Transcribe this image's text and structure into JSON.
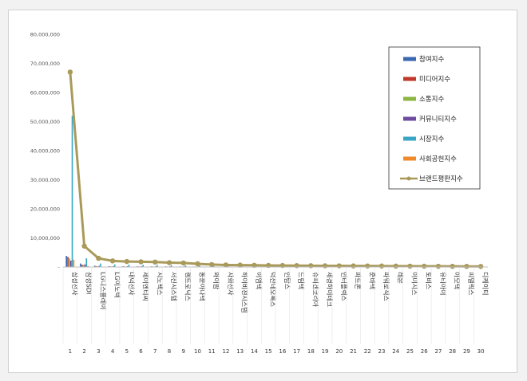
{
  "chart_data": {
    "type": "bar",
    "categories": [
      "삼성전자",
      "삼성SDI",
      "LG디스플레이",
      "LG이노텍",
      "대덕전자",
      "제이엔티씨",
      "시노펙스",
      "서진시스템",
      "켐트로닉스",
      "동운아나텍",
      "와이팜",
      "자화전자",
      "하이비젼시스템",
      "이엠텍",
      "덕산네오룩스",
      "인탑스",
      "드림텍",
      "슈피겐코리아",
      "세경하이테크",
      "인터플렉스",
      "파트론",
      "준바텍",
      "파워로직스",
      "레몬",
      "이미지스",
      "토비스",
      "유티아이",
      "아모텍",
      "피델릭스",
      "디케이티"
    ],
    "numbers": [
      "1",
      "2",
      "3",
      "4",
      "5",
      "6",
      "7",
      "8",
      "9",
      "10",
      "11",
      "12",
      "13",
      "14",
      "15",
      "16",
      "17",
      "18",
      "19",
      "20",
      "21",
      "22",
      "23",
      "24",
      "25",
      "26",
      "27",
      "28",
      "29",
      "30"
    ],
    "series": [
      {
        "name": "참여지수",
        "color": "#3a67b0",
        "values": [
          3800000,
          1200000,
          450000,
          280000,
          260000,
          240000,
          230000,
          210000,
          200000,
          160000,
          120000,
          100000,
          90000,
          85000,
          80000,
          75000,
          70000,
          65000,
          60000,
          55000,
          50000,
          45000,
          40000,
          35000,
          30000,
          28000,
          26000,
          24000,
          22000,
          20000
        ]
      },
      {
        "name": "미디어지수",
        "color": "#c0392b",
        "values": [
          3500000,
          800000,
          300000,
          220000,
          200000,
          190000,
          180000,
          170000,
          160000,
          140000,
          100000,
          80000,
          75000,
          70000,
          65000,
          60000,
          55000,
          50000,
          45000,
          40000,
          35000,
          30000,
          28000,
          26000,
          24000,
          22000,
          20000,
          18000,
          16000,
          15000
        ]
      },
      {
        "name": "소통지수",
        "color": "#8db543",
        "values": [
          3000000,
          700000,
          250000,
          180000,
          160000,
          150000,
          140000,
          130000,
          120000,
          110000,
          90000,
          70000,
          65000,
          60000,
          55000,
          50000,
          45000,
          40000,
          35000,
          30000,
          28000,
          26000,
          24000,
          22000,
          20000,
          18000,
          16000,
          14000,
          12000,
          10000
        ]
      },
      {
        "name": "커뮤니티지수",
        "color": "#6e4b9e",
        "values": [
          2200000,
          900000,
          400000,
          300000,
          280000,
          260000,
          250000,
          240000,
          230000,
          200000,
          150000,
          120000,
          110000,
          100000,
          95000,
          90000,
          85000,
          80000,
          75000,
          70000,
          65000,
          60000,
          55000,
          50000,
          45000,
          40000,
          35000,
          30000,
          25000,
          20000
        ]
      },
      {
        "name": "시장지수",
        "color": "#3aa6c6",
        "values": [
          52000000,
          3000000,
          1200000,
          900000,
          800000,
          750000,
          700000,
          650000,
          600000,
          500000,
          350000,
          300000,
          280000,
          260000,
          240000,
          220000,
          200000,
          180000,
          160000,
          150000,
          140000,
          130000,
          120000,
          110000,
          100000,
          90000,
          80000,
          70000,
          60000,
          50000
        ]
      },
      {
        "name": "사회공헌지수",
        "color": "#ef8a2a",
        "values": [
          2500000,
          400000,
          150000,
          100000,
          90000,
          85000,
          80000,
          75000,
          70000,
          60000,
          45000,
          40000,
          35000,
          30000,
          28000,
          26000,
          24000,
          22000,
          20000,
          18000,
          16000,
          14000,
          12000,
          10000,
          9000,
          8000,
          7000,
          6000,
          5000,
          4000
        ]
      },
      {
        "name": "브랜드평판지수",
        "color": "#a99a5a",
        "type": "line",
        "values": [
          67000000,
          7200000,
          3000000,
          2100000,
          1900000,
          1800000,
          1700000,
          1500000,
          1400000,
          1100000,
          850000,
          700000,
          650000,
          600000,
          560000,
          520000,
          480000,
          450000,
          420000,
          400000,
          380000,
          360000,
          340000,
          320000,
          300000,
          280000,
          260000,
          240000,
          220000,
          200000
        ]
      }
    ],
    "yticks": [
      "-",
      "10,000,000",
      "20,000,000",
      "30,000,000",
      "40,000,000",
      "50,000,000",
      "60,000,000",
      "70,000,000",
      "80,000,000"
    ],
    "ylim": [
      0,
      80000000
    ],
    "legend_position": "top-right",
    "grid": false,
    "title": "",
    "xlabel": "",
    "ylabel": ""
  }
}
